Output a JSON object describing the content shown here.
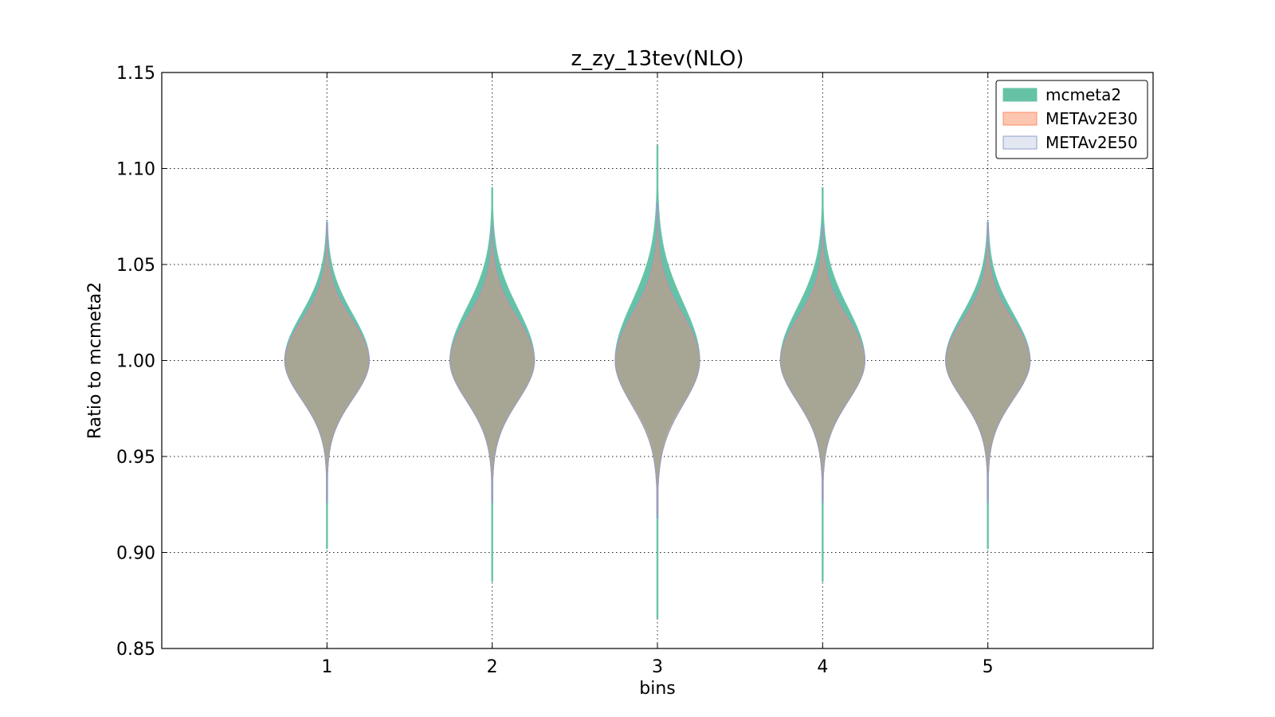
{
  "chart_data": {
    "type": "violin",
    "title": "z_zy_13tev(NLO)",
    "xlabel": "bins",
    "ylabel": "Ratio to mcmeta2",
    "ylim": [
      0.85,
      1.15
    ],
    "xlim": [
      0,
      6
    ],
    "yticks": [
      0.85,
      0.9,
      0.95,
      1.0,
      1.05,
      1.1,
      1.15
    ],
    "ytick_labels": [
      "0.85",
      "0.90",
      "0.95",
      "1.00",
      "1.05",
      "1.10",
      "1.15"
    ],
    "categories": [
      "1",
      "2",
      "3",
      "4",
      "5"
    ],
    "grid": true,
    "legend_position": "top-right",
    "series": [
      {
        "name": "mcmeta2",
        "color": "#66c2a5",
        "violins": [
          {
            "center": 1.0,
            "min": 0.902,
            "max": 1.072,
            "sigma_low": 0.02,
            "sigma_high": 0.024
          },
          {
            "center": 1.0,
            "min": 0.885,
            "max": 1.09,
            "sigma_low": 0.021,
            "sigma_high": 0.027
          },
          {
            "center": 1.0,
            "min": 0.866,
            "max": 1.112,
            "sigma_low": 0.022,
            "sigma_high": 0.03
          },
          {
            "center": 1.0,
            "min": 0.885,
            "max": 1.09,
            "sigma_low": 0.021,
            "sigma_high": 0.027
          },
          {
            "center": 1.0,
            "min": 0.902,
            "max": 1.072,
            "sigma_low": 0.02,
            "sigma_high": 0.024
          }
        ]
      },
      {
        "name": "METAv2E30",
        "color": "#fc8d62",
        "violins": [
          {
            "center": 1.0,
            "min": 0.928,
            "max": 1.07,
            "sigma_low": 0.02,
            "sigma_high": 0.02
          },
          {
            "center": 1.0,
            "min": 0.928,
            "max": 1.068,
            "sigma_low": 0.021,
            "sigma_high": 0.021
          },
          {
            "center": 1.0,
            "min": 0.92,
            "max": 1.078,
            "sigma_low": 0.023,
            "sigma_high": 0.023
          },
          {
            "center": 1.0,
            "min": 0.928,
            "max": 1.068,
            "sigma_low": 0.021,
            "sigma_high": 0.021
          },
          {
            "center": 1.0,
            "min": 0.928,
            "max": 1.07,
            "sigma_low": 0.02,
            "sigma_high": 0.02
          }
        ]
      },
      {
        "name": "METAv2E50",
        "color": "#8da0cb",
        "violins": [
          {
            "center": 1.0,
            "min": 0.926,
            "max": 1.072,
            "sigma_low": 0.02,
            "sigma_high": 0.021
          },
          {
            "center": 1.0,
            "min": 0.926,
            "max": 1.07,
            "sigma_low": 0.021,
            "sigma_high": 0.022
          },
          {
            "center": 1.0,
            "min": 0.918,
            "max": 1.082,
            "sigma_low": 0.023,
            "sigma_high": 0.024
          },
          {
            "center": 1.0,
            "min": 0.926,
            "max": 1.07,
            "sigma_low": 0.021,
            "sigma_high": 0.022
          },
          {
            "center": 1.0,
            "min": 0.926,
            "max": 1.072,
            "sigma_low": 0.02,
            "sigma_high": 0.021
          }
        ]
      }
    ]
  }
}
